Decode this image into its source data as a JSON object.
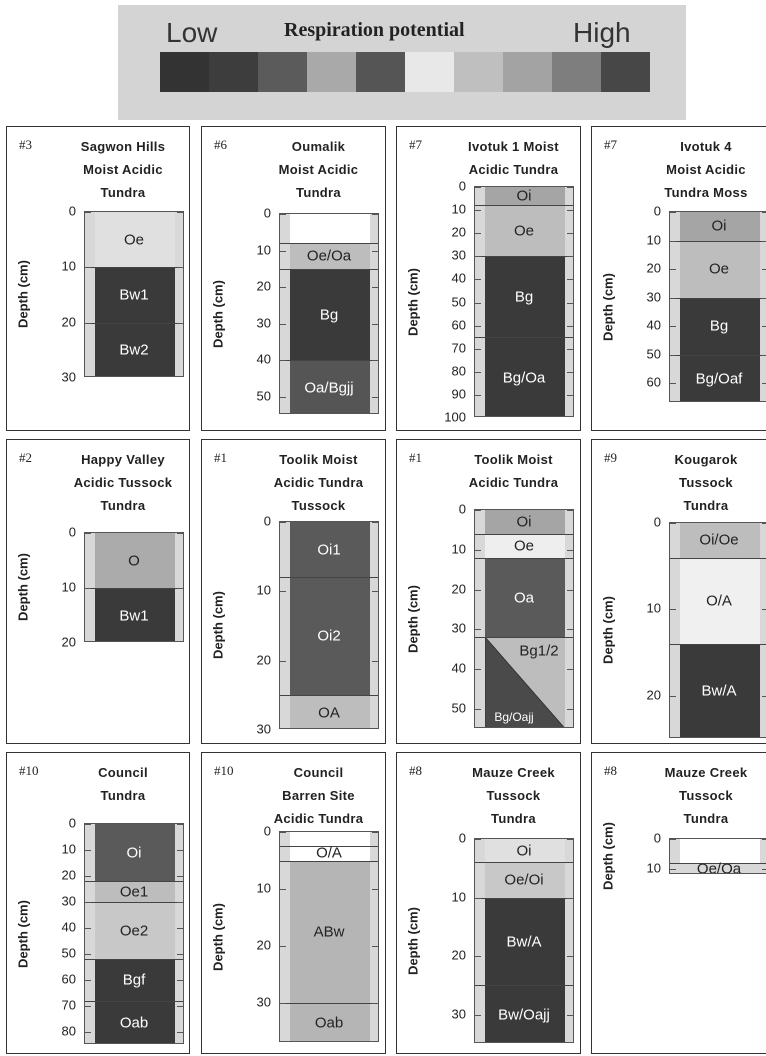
{
  "legend": {
    "low_label": "Low",
    "title": "Respiration potential",
    "high_label": "High",
    "scale_colors": [
      "#333333",
      "#3d3d3d",
      "#5b5b5b",
      "#a9a9a9",
      "#555555",
      "#e8e8e8",
      "#bfbfbf",
      "#a3a3a3",
      "#7e7e7e",
      "#474747"
    ]
  },
  "y_axis_label": "Depth (cm)",
  "sites": [
    {
      "id": "#3",
      "title": "Sagwon Hills\nMoist Acidic\nTundra",
      "depth_max": 30,
      "ticks": [
        0,
        10,
        20,
        30
      ],
      "horizons": [
        {
          "top": 0,
          "bottom": 10,
          "label": "Oe",
          "color": "#e0e0e0"
        },
        {
          "top": 10,
          "bottom": 20,
          "label": "Bw1",
          "color": "#3a3a3a"
        },
        {
          "top": 20,
          "bottom": 30,
          "label": "Bw2",
          "color": "#3a3a3a"
        }
      ]
    },
    {
      "id": "#6",
      "title": "Oumalik\nMoist Acidic\nTundra",
      "depth_max": 55,
      "ticks": [
        0,
        10,
        20,
        30,
        40,
        50
      ],
      "horizons": [
        {
          "top": 0,
          "bottom": 8,
          "label": "",
          "color": "#ffffff"
        },
        {
          "top": 8,
          "bottom": 15,
          "label": "Oe/Oa",
          "color": "#bdbdbd"
        },
        {
          "top": 15,
          "bottom": 40,
          "label": "Bg",
          "color": "#3a3a3a"
        },
        {
          "top": 40,
          "bottom": 55,
          "label": "Oa/Bgjj",
          "color": "#555555"
        }
      ]
    },
    {
      "id": "#7",
      "title": "Ivotuk 1 Moist\nAcidic Tundra",
      "depth_max": 100,
      "ticks": [
        0,
        10,
        20,
        30,
        40,
        50,
        60,
        70,
        80,
        90,
        100
      ],
      "horizons": [
        {
          "top": 0,
          "bottom": 8,
          "label": "Oi",
          "color": "#a5a5a5"
        },
        {
          "top": 8,
          "bottom": 30,
          "label": "Oe",
          "color": "#bdbdbd"
        },
        {
          "top": 30,
          "bottom": 65,
          "label": "Bg",
          "color": "#3a3a3a"
        },
        {
          "top": 65,
          "bottom": 100,
          "label": "Bg/Oa",
          "color": "#3a3a3a"
        }
      ]
    },
    {
      "id": "#7",
      "title": "Ivotuk 4\nMoist Acidic\nTundra Moss",
      "depth_max": 67,
      "ticks": [
        0,
        10,
        20,
        30,
        40,
        50,
        60
      ],
      "horizons": [
        {
          "top": 0,
          "bottom": 10,
          "label": "Oi",
          "color": "#a5a5a5"
        },
        {
          "top": 10,
          "bottom": 30,
          "label": "Oe",
          "color": "#bdbdbd"
        },
        {
          "top": 30,
          "bottom": 50,
          "label": "Bg",
          "color": "#3a3a3a"
        },
        {
          "top": 50,
          "bottom": 67,
          "label": "Bg/Oaf",
          "color": "#3a3a3a"
        }
      ]
    },
    {
      "id": "#2",
      "title": "Happy Valley\nAcidic Tussock\nTundra",
      "depth_max": 20,
      "ticks": [
        0,
        10,
        20
      ],
      "horizons": [
        {
          "top": 0,
          "bottom": 10,
          "label": "O",
          "color": "#ababab"
        },
        {
          "top": 10,
          "bottom": 20,
          "label": "Bw1",
          "color": "#3a3a3a"
        }
      ]
    },
    {
      "id": "#1",
      "title": "Toolik Moist\nAcidic Tundra\nTussock",
      "depth_max": 30,
      "ticks": [
        0,
        10,
        20,
        30
      ],
      "horizons": [
        {
          "top": 0,
          "bottom": 8,
          "label": "Oi1",
          "color": "#5a5a5a"
        },
        {
          "top": 8,
          "bottom": 25,
          "label": "Oi2",
          "color": "#5a5a5a"
        },
        {
          "top": 25,
          "bottom": 30,
          "label": "OA",
          "color": "#bdbdbd"
        }
      ]
    },
    {
      "id": "#1",
      "title": "Toolik Moist\nAcidic Tundra",
      "depth_max": 55,
      "ticks": [
        0,
        10,
        20,
        30,
        40,
        50
      ],
      "horizons": [
        {
          "top": 0,
          "bottom": 6,
          "label": "Oi",
          "color": "#a5a5a5"
        },
        {
          "top": 6,
          "bottom": 12,
          "label": "Oe",
          "color": "#eeeeee"
        },
        {
          "top": 12,
          "bottom": 32,
          "label": "Oa",
          "color": "#5a5a5a"
        },
        {
          "top": 32,
          "bottom": 55,
          "label": "Bg1/2",
          "color": "#bdbdbd",
          "diagonal": "#4a4a4a",
          "diag_label": "Bg/Oajj"
        }
      ]
    },
    {
      "id": "#9",
      "title": "Kougarok\nTussock\nTundra",
      "depth_max": 25,
      "ticks": [
        0,
        10,
        20
      ],
      "horizons": [
        {
          "top": 0,
          "bottom": 4,
          "label": "Oi/Oe",
          "color": "#bdbdbd"
        },
        {
          "top": 4,
          "bottom": 14,
          "label": "O/A",
          "color": "#f0f0f0"
        },
        {
          "top": 14,
          "bottom": 25,
          "label": "Bw/A",
          "color": "#3a3a3a"
        }
      ]
    },
    {
      "id": "#10",
      "title": "Council\nTundra",
      "depth_max": 85,
      "ticks": [
        0,
        10,
        20,
        30,
        40,
        50,
        60,
        70,
        80
      ],
      "horizons": [
        {
          "top": 0,
          "bottom": 22,
          "label": "Oi",
          "color": "#5a5a5a"
        },
        {
          "top": 22,
          "bottom": 30,
          "label": "Oe1",
          "color": "#bdbdbd"
        },
        {
          "top": 30,
          "bottom": 52,
          "label": "Oe2",
          "color": "#c8c8c8"
        },
        {
          "top": 52,
          "bottom": 68,
          "label": "Bgf",
          "color": "#3a3a3a"
        },
        {
          "top": 68,
          "bottom": 85,
          "label": "Oab",
          "color": "#3a3a3a"
        }
      ]
    },
    {
      "id": "#10",
      "title": "Council\nBarren Site\nAcidic Tundra",
      "depth_max": 37,
      "ticks": [
        0,
        10,
        20,
        30
      ],
      "horizons": [
        {
          "top": 0,
          "bottom": 2.5,
          "label": "",
          "color": "#ffffff"
        },
        {
          "top": 2.5,
          "bottom": 5,
          "label": "O/A",
          "color": "#ffffff"
        },
        {
          "top": 5,
          "bottom": 30,
          "label": "ABw",
          "color": "#b5b5b5"
        },
        {
          "top": 30,
          "bottom": 37,
          "label": "Oab",
          "color": "#b5b5b5"
        }
      ]
    },
    {
      "id": "#8",
      "title": "Mauze Creek\nTussock\nTundra",
      "depth_max": 35,
      "ticks": [
        0,
        10,
        20,
        30
      ],
      "horizons": [
        {
          "top": 0,
          "bottom": 4,
          "label": "Oi",
          "color": "#e0e0e0"
        },
        {
          "top": 4,
          "bottom": 10,
          "label": "Oe/Oi",
          "color": "#c8c8c8"
        },
        {
          "top": 10,
          "bottom": 25,
          "label": "Bw/A",
          "color": "#3a3a3a"
        },
        {
          "top": 25,
          "bottom": 35,
          "label": "Bw/Oajj",
          "color": "#3a3a3a"
        }
      ]
    },
    {
      "id": "#8",
      "title": "Mauze Creek\nTussock\nTundra",
      "depth_max": 12,
      "ticks": [
        0,
        10
      ],
      "horizons": [
        {
          "top": 0,
          "bottom": 8,
          "label": "",
          "color": "#ffffff"
        },
        {
          "top": 8,
          "bottom": 12,
          "label": "Oe/Oa",
          "color": "#d8d8d8"
        }
      ]
    }
  ]
}
